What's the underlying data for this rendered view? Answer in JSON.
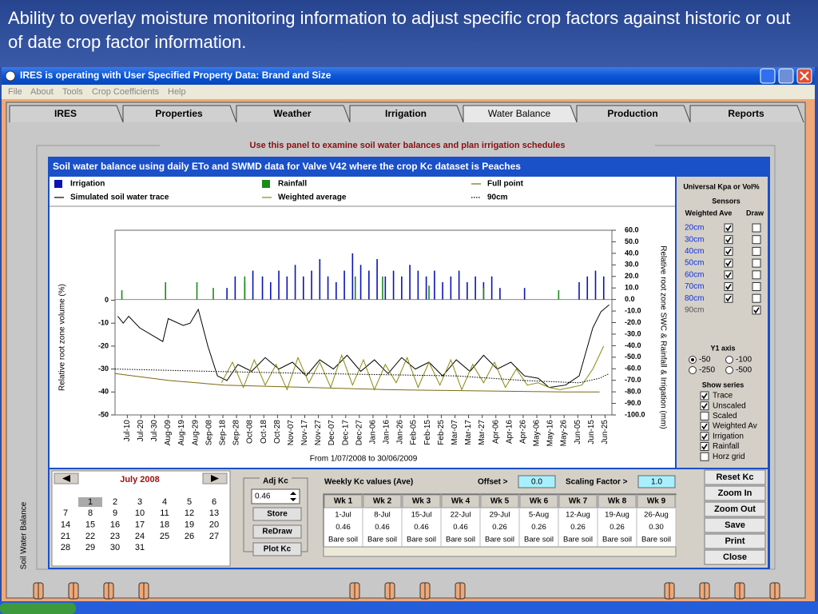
{
  "slide_title": "Ability to overlay moisture monitoring information to adjust specific crop factors against historic or out of date crop factor information.",
  "window": {
    "title": "IRES is operating with User Specified Property Data: Brand and Size"
  },
  "menu": [
    "File",
    "About",
    "Tools",
    "Crop Coefficients",
    "Help"
  ],
  "tabs": [
    "IRES",
    "Properties",
    "Weather",
    "Irrigation",
    "Water Balance",
    "Production",
    "Reports"
  ],
  "selected_tab": 4,
  "panel_caption": "Use this panel to examine soil water balances and plan irrigation schedules",
  "side_label": "Soil Water Balance",
  "chart": {
    "type": "line",
    "title": "Soil water balance using daily ETo and SWMD data for Valve V42 where the crop Kc dataset is Peaches",
    "y_label": "Relative root zone volume (%)",
    "y2_label": "Relative root zone SWC & Rainfall & Irrigation (mm)",
    "x_label": "From 1/07/2008 to 30/06/2009",
    "xlim": [
      0,
      364
    ],
    "ylim": [
      -50,
      30.5
    ],
    "y2lim": [
      -100,
      60
    ],
    "yticks": [
      0,
      -10,
      -20,
      -30,
      -40,
      -50
    ],
    "y2ticks": [
      {
        "value": 60,
        "label": "60.0"
      },
      {
        "value": 50,
        "label": "50.0"
      },
      {
        "value": 40,
        "label": "40.0"
      },
      {
        "value": 30,
        "label": "30.0"
      },
      {
        "value": 20,
        "label": "20.0"
      },
      {
        "value": 10,
        "label": "10.0"
      },
      {
        "value": 0,
        "label": "0.0"
      },
      {
        "value": -10,
        "label": "-10.0"
      },
      {
        "value": -20,
        "label": "-20.0"
      },
      {
        "value": -30,
        "label": "-30.0"
      },
      {
        "value": -40,
        "label": "-40.0"
      },
      {
        "value": -50,
        "label": "-50.0"
      },
      {
        "value": -60,
        "label": "-60.0"
      },
      {
        "value": -70,
        "label": "-70.0"
      },
      {
        "value": -80,
        "label": "-80.0"
      },
      {
        "value": -90,
        "label": "-90.0"
      },
      {
        "value": -100,
        "label": "-100.0"
      }
    ],
    "xticks": [
      {
        "value": 9,
        "label": "Jul-10"
      },
      {
        "value": 19,
        "label": "Jul-20"
      },
      {
        "value": 29,
        "label": "Jul-30"
      },
      {
        "value": 39,
        "label": "Aug-09"
      },
      {
        "value": 49,
        "label": "Aug-19"
      },
      {
        "value": 59,
        "label": "Aug-29"
      },
      {
        "value": 69,
        "label": "Sep-08"
      },
      {
        "value": 79,
        "label": "Sep-18"
      },
      {
        "value": 89,
        "label": "Sep-28"
      },
      {
        "value": 99,
        "label": "Oct-08"
      },
      {
        "value": 109,
        "label": "Oct-18"
      },
      {
        "value": 119,
        "label": "Oct-28"
      },
      {
        "value": 129,
        "label": "Nov-07"
      },
      {
        "value": 139,
        "label": "Nov-17"
      },
      {
        "value": 149,
        "label": "Nov-27"
      },
      {
        "value": 159,
        "label": "Dec-07"
      },
      {
        "value": 169,
        "label": "Dec-17"
      },
      {
        "value": 179,
        "label": "Dec-27"
      },
      {
        "value": 189,
        "label": "Jan-06"
      },
      {
        "value": 199,
        "label": "Jan-16"
      },
      {
        "value": 209,
        "label": "Jan-26"
      },
      {
        "value": 219,
        "label": "Feb-05"
      },
      {
        "value": 229,
        "label": "Feb-15"
      },
      {
        "value": 239,
        "label": "Feb-25"
      },
      {
        "value": 249,
        "label": "Mar-07"
      },
      {
        "value": 259,
        "label": "Mar-17"
      },
      {
        "value": 269,
        "label": "Mar-27"
      },
      {
        "value": 279,
        "label": "Apr-06"
      },
      {
        "value": 289,
        "label": "Apr-16"
      },
      {
        "value": 299,
        "label": "Apr-26"
      },
      {
        "value": 309,
        "label": "May-06"
      },
      {
        "value": 319,
        "label": "May-16"
      },
      {
        "value": 329,
        "label": "May-26"
      },
      {
        "value": 339,
        "label": "Jun-05"
      },
      {
        "value": 349,
        "label": "Jun-15"
      },
      {
        "value": 359,
        "label": "Jun-25"
      }
    ],
    "series": [
      {
        "name": "Irrigation",
        "type": "bar",
        "axis": "y2",
        "color": "#0a14b4",
        "x": [
          82,
          88,
          95,
          101,
          108,
          114,
          120,
          126,
          132,
          138,
          144,
          150,
          156,
          162,
          168,
          174,
          180,
          186,
          192,
          198,
          204,
          210,
          216,
          222,
          228,
          234,
          240,
          246,
          252,
          258,
          264,
          270,
          276,
          282,
          300,
          340,
          346,
          352,
          358
        ],
        "values": [
          10,
          20,
          15,
          25,
          20,
          15,
          25,
          20,
          30,
          20,
          25,
          35,
          20,
          15,
          25,
          40,
          30,
          25,
          35,
          20,
          25,
          20,
          30,
          25,
          20,
          25,
          15,
          20,
          25,
          15,
          20,
          15,
          20,
          10,
          10,
          15,
          20,
          25,
          20
        ]
      },
      {
        "name": "Rainfall",
        "type": "bar",
        "axis": "y2",
        "color": "#1a8a1a",
        "x": [
          5,
          37,
          60,
          72,
          95,
          176,
          196,
          230,
          270,
          325
        ],
        "values": [
          8,
          15,
          15,
          10,
          20,
          20,
          20,
          12,
          10,
          8
        ]
      },
      {
        "name": "Full point",
        "type": "line",
        "color": "#7a6a10",
        "style": "solid",
        "x": [
          0,
          40,
          80,
          200,
          330,
          355
        ],
        "values": [
          -32,
          -35,
          -37,
          -39,
          -40,
          -40
        ]
      },
      {
        "name": "Simulated soil water trace",
        "type": "line",
        "color": "#000000",
        "style": "solid",
        "x": [
          2,
          6,
          10,
          18,
          35,
          39,
          50,
          55,
          61,
          68,
          75,
          82,
          90,
          100,
          110,
          120,
          130,
          140,
          150,
          160,
          170,
          180,
          190,
          200,
          210,
          220,
          230,
          240,
          250,
          260,
          270,
          280,
          290,
          300,
          310,
          318,
          330,
          340,
          350,
          356,
          362
        ],
        "values": [
          -7,
          -10,
          -7,
          -12,
          -18,
          -8,
          -11,
          -10,
          -4,
          -20,
          -33,
          -35,
          -28,
          -31,
          -25,
          -30,
          -27,
          -33,
          -26,
          -30,
          -24,
          -31,
          -26,
          -32,
          -25,
          -30,
          -27,
          -33,
          -26,
          -31,
          -24,
          -30,
          -27,
          -33,
          -34,
          -38,
          -37,
          -33,
          -12,
          -5,
          -2
        ]
      },
      {
        "name": "Weighted average",
        "type": "line",
        "color": "#8a8a10",
        "style": "solid",
        "x": [
          78,
          86,
          94,
          102,
          110,
          118,
          126,
          134,
          142,
          150,
          158,
          166,
          174,
          182,
          190,
          198,
          206,
          214,
          222,
          230,
          238,
          246,
          254,
          262,
          270,
          278,
          286,
          294,
          302,
          310,
          318,
          326,
          334,
          342,
          350,
          358
        ],
        "values": [
          -36,
          -27,
          -38,
          -26,
          -37,
          -28,
          -39,
          -25,
          -36,
          -27,
          -38,
          -24,
          -37,
          -26,
          -39,
          -28,
          -36,
          -25,
          -38,
          -27,
          -37,
          -26,
          -39,
          -28,
          -36,
          -27,
          -38,
          -30,
          -37,
          -36,
          -38,
          -39,
          -38,
          -37,
          -30,
          -20
        ]
      },
      {
        "name": "90cm",
        "type": "line",
        "color": "#000000",
        "style": "dotted",
        "x": [
          0,
          70,
          150,
          250,
          300,
          340,
          355,
          362
        ],
        "values": [
          -30,
          -31,
          -32,
          -33,
          -35,
          -36,
          -34,
          -32
        ]
      }
    ]
  },
  "side_panel": {
    "title": "Universal Kpa or Vol%",
    "sensors_label": "Sensors",
    "weighted_label": "Weighted Ave",
    "draw_label": "Draw",
    "sensors": [
      {
        "name": "20cm",
        "weighted": true,
        "draw": false
      },
      {
        "name": "30cm",
        "weighted": true,
        "draw": false
      },
      {
        "name": "40cm",
        "weighted": true,
        "draw": false
      },
      {
        "name": "50cm",
        "weighted": true,
        "draw": false
      },
      {
        "name": "60cm",
        "weighted": true,
        "draw": false
      },
      {
        "name": "70cm",
        "weighted": true,
        "draw": false
      },
      {
        "name": "80cm",
        "weighted": true,
        "draw": false
      },
      {
        "name": "90cm",
        "weighted": null,
        "draw": true
      }
    ],
    "y1_axis_label": "Y1 axis",
    "y1_options": [
      "-50",
      "-100",
      "-250",
      "-500"
    ],
    "y1_selected": 0,
    "show_series_label": "Show series",
    "show_series": [
      {
        "name": "Trace",
        "checked": true
      },
      {
        "name": "Unscaled",
        "checked": true
      },
      {
        "name": "Scaled",
        "checked": false
      },
      {
        "name": "Weighted Av",
        "checked": true
      },
      {
        "name": "Irrigation",
        "checked": true
      },
      {
        "name": "Rainfall",
        "checked": true
      },
      {
        "name": "Horz grid",
        "checked": false
      }
    ]
  },
  "calendar": {
    "month": "July 2008",
    "selected": 1,
    "weeks": [
      [
        null,
        1,
        2,
        3,
        4,
        5,
        6
      ],
      [
        7,
        8,
        9,
        10,
        11,
        12,
        13
      ],
      [
        14,
        15,
        16,
        17,
        18,
        19,
        20
      ],
      [
        21,
        22,
        23,
        24,
        25,
        26,
        27
      ],
      [
        28,
        29,
        30,
        31,
        null,
        null,
        null
      ]
    ]
  },
  "kc": {
    "label": "Adj Kc",
    "input": "0.46",
    "buttons": [
      "Store",
      "ReDraw",
      "Plot Kc"
    ],
    "weekly_label": "Weekly Kc values (Ave)",
    "offset_label": "Offset >",
    "offset": "0.0",
    "scaling_label": "Scaling Factor >",
    "scaling": "1.0",
    "table": {
      "headers": [
        "Wk 1",
        "Wk 2",
        "Wk 3",
        "Wk 4",
        "Wk 5",
        "Wk 6",
        "Wk 7",
        "Wk 8",
        "Wk 9"
      ],
      "rows": [
        [
          "1-Jul",
          "8-Jul",
          "15-Jul",
          "22-Jul",
          "29-Jul",
          "5-Aug",
          "12-Aug",
          "19-Aug",
          "26-Aug"
        ],
        [
          "0.46",
          "0.46",
          "0.46",
          "0.46",
          "0.26",
          "0.26",
          "0.26",
          "0.26",
          "0.30"
        ],
        [
          "Bare soil",
          "Bare soil",
          "Bare soil",
          "Bare soil",
          "Bare soil",
          "Bare soil",
          "Bare soil",
          "Bare soil",
          "Bare soil"
        ]
      ]
    }
  },
  "actions": [
    "Reset Kc",
    "Zoom In",
    "Zoom Out",
    "Save",
    "Print",
    "Close"
  ]
}
